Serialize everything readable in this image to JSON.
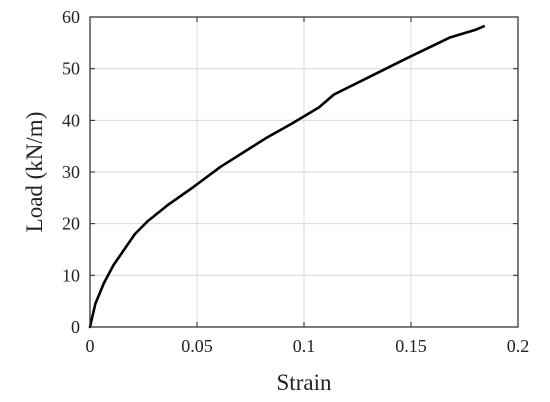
{
  "chart_data": {
    "type": "line",
    "title": "",
    "xlabel": "Strain",
    "ylabel": "Load (kN/m)",
    "xlim": [
      0,
      0.2
    ],
    "ylim": [
      0,
      60
    ],
    "xticks": [
      0,
      0.05,
      0.1,
      0.15,
      0.2
    ],
    "xtick_labels": [
      "0",
      "0.05",
      "0.1",
      "0.15",
      "0.2"
    ],
    "yticks": [
      0,
      10,
      20,
      30,
      40,
      50,
      60
    ],
    "ytick_labels": [
      "0",
      "10",
      "20",
      "30",
      "40",
      "50",
      "60"
    ],
    "grid": true,
    "legend": "none",
    "line_color": "#000000",
    "series": [
      {
        "x": [
          0,
          0.0025,
          0.0065,
          0.011,
          0.016,
          0.021,
          0.027,
          0.036,
          0.048,
          0.061,
          0.082,
          0.094,
          0.107,
          0.114,
          0.131,
          0.148,
          0.168,
          0.18,
          0.184
        ],
        "y": [
          0,
          4.5,
          8.5,
          12.0,
          15.0,
          18.0,
          20.5,
          23.5,
          27.0,
          31.0,
          36.5,
          39.3,
          42.5,
          45.0,
          48.5,
          52.0,
          56.0,
          57.5,
          58.2
        ]
      }
    ]
  }
}
